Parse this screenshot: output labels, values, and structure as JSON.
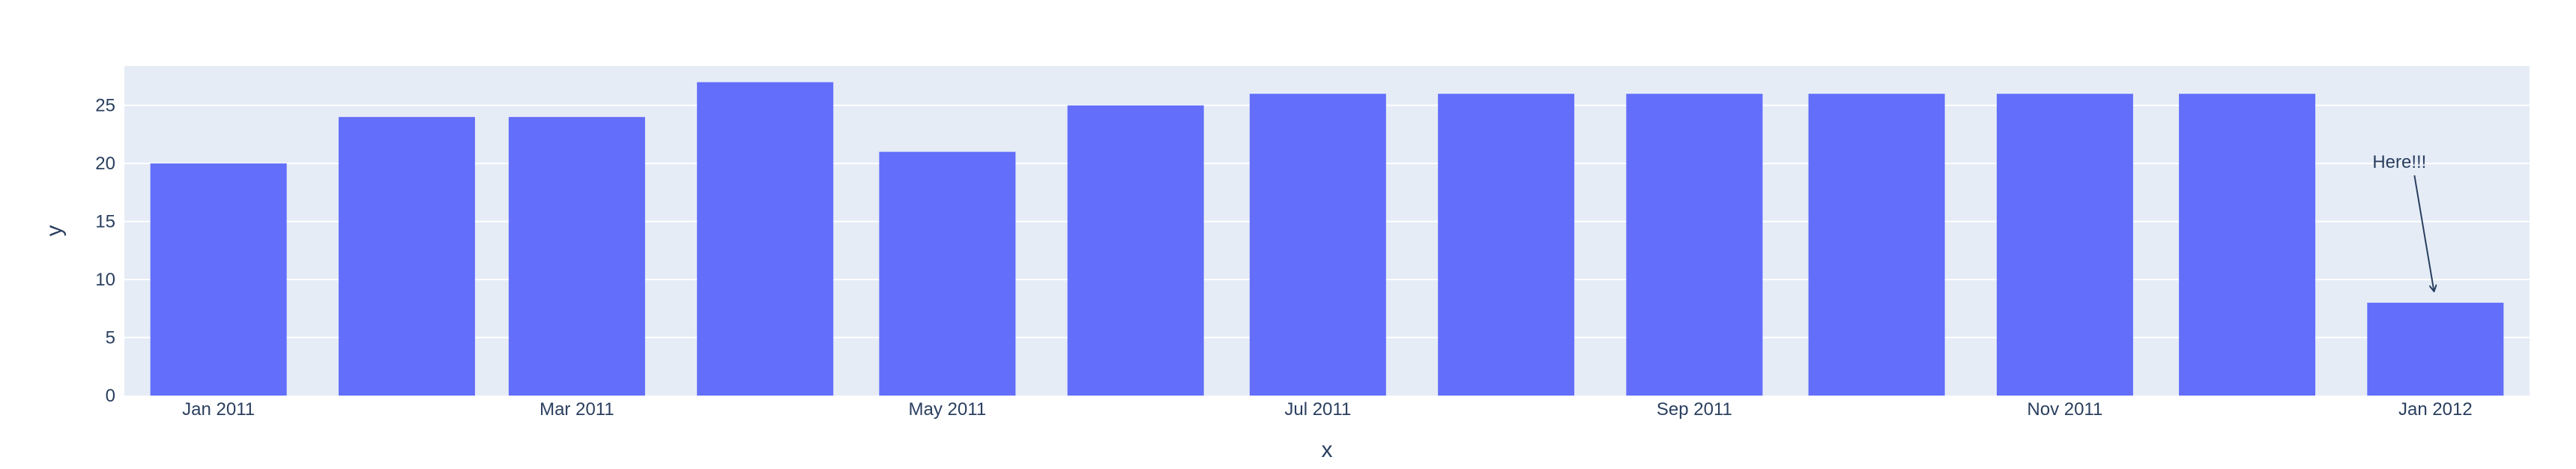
{
  "chart_data": {
    "type": "bar",
    "xlabel": "x",
    "ylabel": "y",
    "ylim": [
      0,
      28.4
    ],
    "yticks": [
      0,
      5,
      10,
      15,
      20,
      25
    ],
    "x": [
      "2011-01",
      "2011-02",
      "2011-03",
      "2011-04",
      "2011-05",
      "2011-06",
      "2011-07",
      "2011-08",
      "2011-09",
      "2011-10",
      "2011-11",
      "2011-12",
      "2012-01"
    ],
    "values": [
      20,
      24,
      24,
      27,
      21,
      25,
      26,
      26,
      26,
      26,
      26,
      26,
      8
    ],
    "xticks": [
      {
        "x": "2011-01",
        "label": "Jan 2011"
      },
      {
        "x": "2011-03",
        "label": "Mar 2011"
      },
      {
        "x": "2011-05",
        "label": "May 2011"
      },
      {
        "x": "2011-07",
        "label": "Jul 2011"
      },
      {
        "x": "2011-09",
        "label": "Sep 2011"
      },
      {
        "x": "2011-11",
        "label": "Nov 2011"
      },
      {
        "x": "2012-01",
        "label": "Jan 2012"
      }
    ],
    "annotation": {
      "text": "Here!!!",
      "x": "2012-01",
      "y": 8,
      "arrow": true
    },
    "grid": true,
    "colors": {
      "bar": "#636efa",
      "plot_bg": "#e5ecf6",
      "grid": "#ffffff",
      "text": "#2a3f5f"
    }
  }
}
